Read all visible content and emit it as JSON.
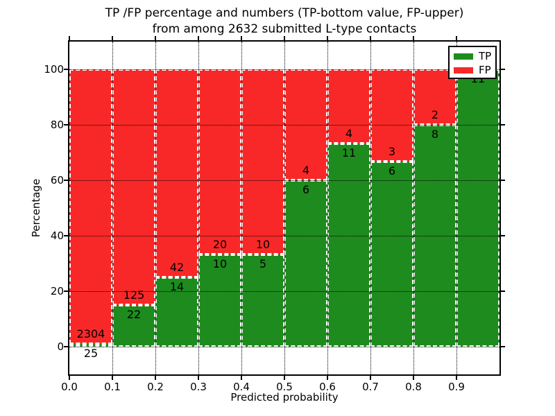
{
  "figure": {
    "title_line1": "TP /FP percentage and numbers (TP-bottom value, FP-upper)",
    "title_line2": "from among 2632 submitted L-type contacts",
    "xlabel": "Predicted probability",
    "ylabel": "Percentage",
    "background_color": "#ffffff",
    "grid_color": "#000000"
  },
  "legend": {
    "position": "upper right",
    "items": [
      {
        "label": "TP",
        "color": "#1e8b1e"
      },
      {
        "label": "FP",
        "color": "#f92828"
      }
    ]
  },
  "chart_data": {
    "type": "bar",
    "stacked": true,
    "normalized_to_percent": true,
    "title": "TP /FP percentage and numbers (TP-bottom value, FP-upper) from among 2632 submitted L-type contacts",
    "xlabel": "Predicted probability",
    "ylabel": "Percentage",
    "grid": true,
    "xlim": [
      0.0,
      1.0
    ],
    "ylim": [
      -10,
      110
    ],
    "xticks": [
      "0.0",
      "0.1",
      "0.2",
      "0.3",
      "0.4",
      "0.5",
      "0.6",
      "0.7",
      "0.8",
      "0.9"
    ],
    "yticks": [
      "0",
      "20",
      "40",
      "60",
      "80",
      "100"
    ],
    "total_contacts": 2632,
    "categories": [
      "0.0-0.1",
      "0.1-0.2",
      "0.2-0.3",
      "0.3-0.4",
      "0.4-0.5",
      "0.5-0.6",
      "0.6-0.7",
      "0.7-0.8",
      "0.8-0.9",
      "0.9-1.0"
    ],
    "series": [
      {
        "name": "TP",
        "color": "#1e8b1e",
        "values": [
          25,
          22,
          14,
          10,
          5,
          6,
          11,
          6,
          8,
          11
        ]
      },
      {
        "name": "FP",
        "color": "#f92828",
        "values": [
          2304,
          125,
          42,
          20,
          10,
          4,
          4,
          3,
          2,
          0
        ]
      }
    ],
    "bins": [
      {
        "range": "0.0-0.1",
        "tp": 25,
        "fp": 2304,
        "tp_label": "25",
        "fp_label": "2304",
        "tp_percent": 1.07
      },
      {
        "range": "0.1-0.2",
        "tp": 22,
        "fp": 125,
        "tp_label": "22",
        "fp_label": "125",
        "tp_percent": 14.97
      },
      {
        "range": "0.2-0.3",
        "tp": 14,
        "fp": 42,
        "tp_label": "14",
        "fp_label": "42",
        "tp_percent": 25.0
      },
      {
        "range": "0.3-0.4",
        "tp": 10,
        "fp": 20,
        "tp_label": "10",
        "fp_label": "20",
        "tp_percent": 33.33
      },
      {
        "range": "0.4-0.5",
        "tp": 5,
        "fp": 10,
        "tp_label": "5",
        "fp_label": "10",
        "tp_percent": 33.33
      },
      {
        "range": "0.5-0.6",
        "tp": 6,
        "fp": 4,
        "tp_label": "6",
        "fp_label": "4",
        "tp_percent": 60.0
      },
      {
        "range": "0.6-0.7",
        "tp": 11,
        "fp": 4,
        "tp_label": "11",
        "fp_label": "4",
        "tp_percent": 73.33
      },
      {
        "range": "0.7-0.8",
        "tp": 6,
        "fp": 3,
        "tp_label": "6",
        "fp_label": "3",
        "tp_percent": 66.67
      },
      {
        "range": "0.8-0.9",
        "tp": 8,
        "fp": 2,
        "tp_label": "8",
        "fp_label": "2",
        "tp_percent": 80.0
      },
      {
        "range": "0.9-1.0",
        "tp": 11,
        "fp": 0,
        "tp_label": "11",
        "fp_label": "",
        "tp_percent": 100.0
      }
    ]
  }
}
